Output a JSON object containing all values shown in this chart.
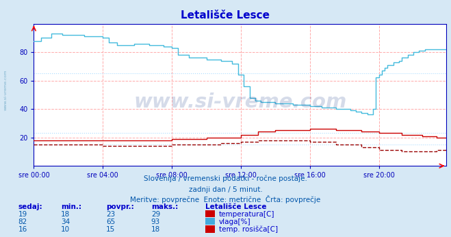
{
  "title": "Letališče Lesce",
  "bg_color": "#d6e8f5",
  "plot_bg_color": "#ffffff",
  "grid_color_major": "#ffaaaa",
  "grid_color_minor": "#aaddff",
  "x_labels": [
    "sre 00:00",
    "sre 04:00",
    "sre 08:00",
    "sre 12:00",
    "sre 16:00",
    "sre 20:00"
  ],
  "x_ticks_idx": [
    0,
    48,
    96,
    144,
    192,
    240
  ],
  "ylim": [
    0,
    100
  ],
  "yticks": [
    20,
    40,
    60,
    80
  ],
  "total_points": 288,
  "subtitle1": "Slovenija / vremenski podatki - ročne postaje.",
  "subtitle2": "zadnji dan / 5 minut.",
  "subtitle3": "Meritve: povprečne  Enote: metrične  Črta: povprečje",
  "table_header": [
    "sedaj:",
    "min.:",
    "povpr.:",
    "maks.:",
    "Letališče Lesce"
  ],
  "table_data": [
    [
      19,
      18,
      23,
      29,
      "temperatura[C]",
      "#cc0000"
    ],
    [
      82,
      34,
      65,
      93,
      "vlaga[%]",
      "#44aadd"
    ],
    [
      16,
      10,
      15,
      18,
      "temp. rosišča[C]",
      "#cc0000"
    ]
  ],
  "line_temp_color": "#cc0000",
  "line_hum_color": "#44bbdd",
  "line_dew_color": "#990000",
  "mean_temp": 23,
  "mean_hum": 65,
  "mean_dew": 15,
  "watermark": "www.si-vreme.com",
  "watermark_color": "#1a3a8a",
  "watermark_alpha": 0.18,
  "title_color": "#0000cc",
  "axis_color": "#0000bb",
  "subtitle_color": "#0055aa",
  "table_label_color": "#0000cc",
  "table_val_color": "#0055aa",
  "left_label": "www.si-vreme.com",
  "left_label_color": "#5599bb",
  "swatch_colors": [
    "#cc0000",
    "#44aadd",
    "#cc0000"
  ]
}
